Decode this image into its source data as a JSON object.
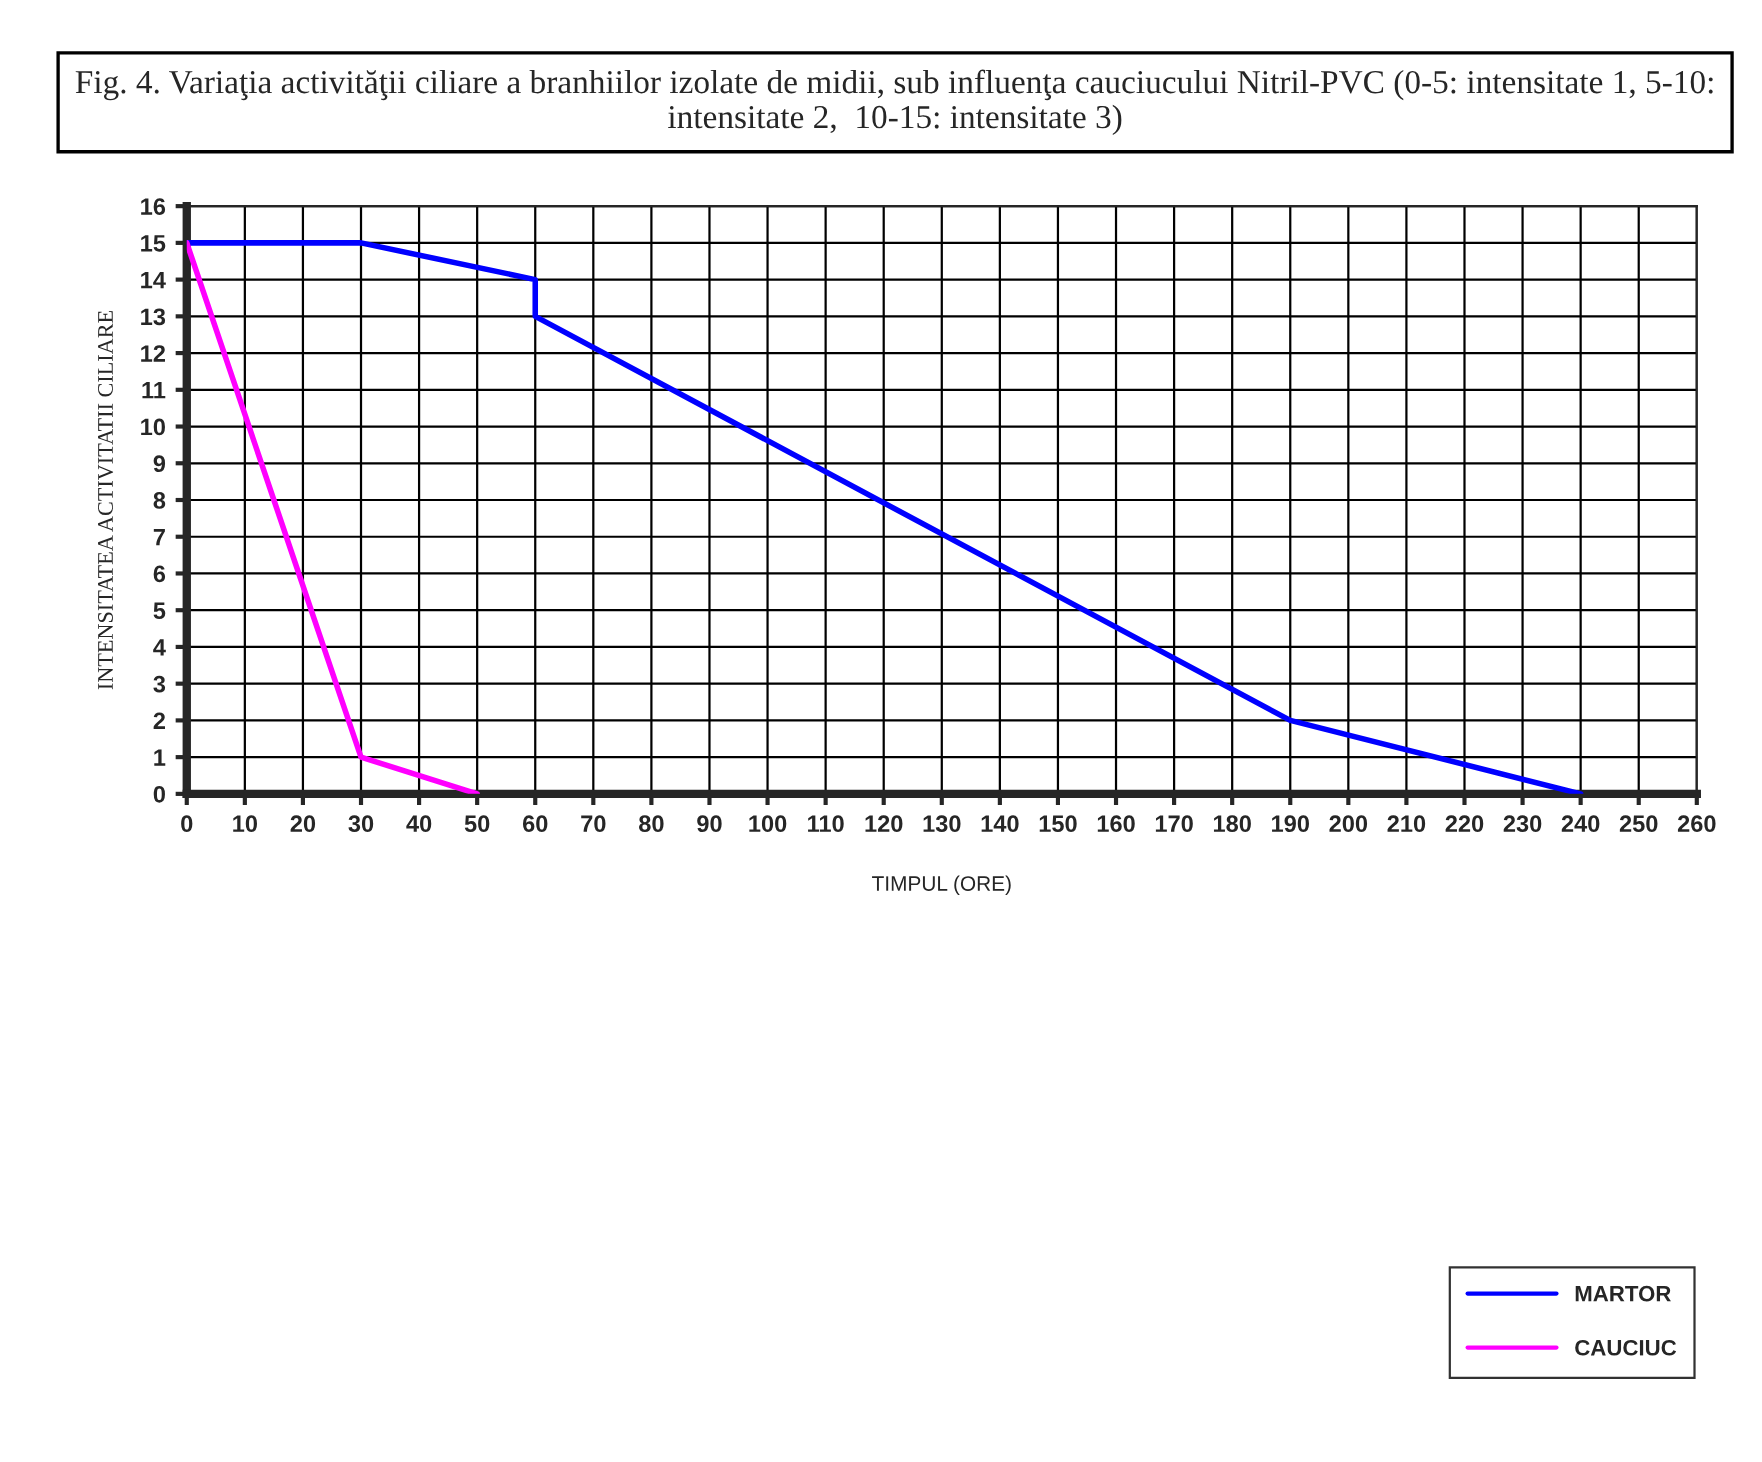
{
  "chart_data": {
    "type": "line",
    "title": "Fig. 4. Variaţia activităţii ciliare a branhiilor izolate de midii, sub influenţa cauciucului Nitril-PVC (0-5: intensitate 1, 5-10: intensitate 2,  10-15: intensitate 3)",
    "xlabel": "TIMPUL (ORE)",
    "ylabel": "INTENSITATEA ACTIVITATII CILIARE",
    "series": [
      {
        "name": "MARTOR",
        "color": "#0000ff",
        "x": [
          0,
          30,
          60,
          60,
          190,
          240
        ],
        "values": [
          15,
          15,
          14,
          13,
          2,
          0
        ]
      },
      {
        "name": "CAUCIUC",
        "color": "#ff00ff",
        "x": [
          0,
          30,
          50
        ],
        "values": [
          15,
          1,
          0
        ]
      }
    ],
    "xlim": [
      0,
      260
    ],
    "xticks": [
      0,
      10,
      20,
      30,
      40,
      50,
      60,
      70,
      80,
      90,
      100,
      110,
      120,
      130,
      140,
      150,
      160,
      170,
      180,
      190,
      200,
      210,
      220,
      230,
      240,
      250,
      260
    ],
    "ylim": [
      0,
      16
    ],
    "yticks": [
      0,
      1,
      2,
      3,
      4,
      5,
      6,
      7,
      8,
      9,
      10,
      11,
      12,
      13,
      14,
      15,
      16
    ],
    "grid": true,
    "legend": "bottom right",
    "marker": "none",
    "line_style": "solid"
  }
}
